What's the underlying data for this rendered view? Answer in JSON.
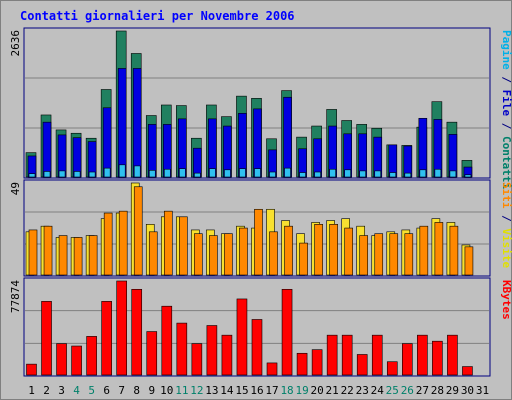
{
  "chart_data": {
    "type": "bar",
    "title": "Contatti giornalieri per Novembre 2006",
    "categories": [
      "1",
      "2",
      "3",
      "4",
      "5",
      "6",
      "7",
      "8",
      "9",
      "10",
      "11",
      "12",
      "13",
      "14",
      "15",
      "16",
      "17",
      "18",
      "19",
      "20",
      "21",
      "22",
      "23",
      "24",
      "25",
      "26",
      "27",
      "28",
      "29",
      "30",
      "31"
    ],
    "weekend_days": [
      "4",
      "5",
      "11",
      "12",
      "18",
      "19",
      "25",
      "26"
    ],
    "panels": [
      {
        "id": "top",
        "max_label": "2636",
        "ylim": [
          0,
          2636
        ],
        "side_label": [
          {
            "text": "Pagine",
            "color": "#00b0e8"
          },
          {
            "text": " / ",
            "color": "#000080"
          },
          {
            "text": "File",
            "color": "#0000c8"
          },
          {
            "text": " / ",
            "color": "#000080"
          },
          {
            "text": "Contatti",
            "color": "#00806a"
          }
        ],
        "series": [
          {
            "name": "Contatti",
            "color": "#208060",
            "values": [
              440,
              1120,
              850,
              790,
              700,
              1580,
              2636,
              2230,
              1110,
              1300,
              1290,
              700,
              1300,
              1090,
              1460,
              1420,
              690,
              1560,
              720,
              920,
              1220,
              1020,
              950,
              880,
              580,
              570,
              900,
              1360,
              990,
              300,
              0
            ]
          },
          {
            "name": "File",
            "color": "#0000e0",
            "values": [
              380,
              990,
              760,
              710,
              640,
              1250,
              1960,
              1960,
              950,
              950,
              1050,
              520,
              1050,
              920,
              1150,
              1230,
              490,
              1440,
              510,
              690,
              920,
              780,
              780,
              720,
              580,
              560,
              1060,
              1040,
              770,
              180,
              0
            ]
          },
          {
            "name": "Pagine",
            "color": "#30c0f0",
            "values": [
              60,
              100,
              110,
              100,
              90,
              160,
              220,
              200,
              120,
              140,
              150,
              70,
              150,
              130,
              150,
              150,
              90,
              160,
              80,
              90,
              140,
              130,
              110,
              110,
              80,
              70,
              130,
              140,
              110,
              40,
              0
            ]
          }
        ]
      },
      {
        "id": "mid",
        "max_label": "49",
        "ylim": [
          0,
          49
        ],
        "side_label": [
          {
            "text": "Siti",
            "color": "#ff8800"
          },
          {
            "text": " / ",
            "color": "#000080"
          },
          {
            "text": "Visite",
            "color": "#e0e000"
          }
        ],
        "series": [
          {
            "name": "Visite",
            "color": "#f8e030",
            "values": [
              23,
              26,
              20,
              20,
              21,
              30,
              33,
              49,
              27,
              31,
              31,
              24,
              24,
              22,
              26,
              25,
              35,
              29,
              22,
              28,
              29,
              30,
              26,
              21,
              23,
              24,
              25,
              30,
              28,
              16,
              0
            ]
          },
          {
            "name": "Siti",
            "color": "#ff8800",
            "values": [
              24,
              26,
              21,
              20,
              21,
              33,
              34,
              47,
              23,
              34,
              31,
              22,
              21,
              22,
              25,
              35,
              23,
              26,
              17,
              27,
              27,
              25,
              21,
              22,
              22,
              22,
              26,
              28,
              26,
              15,
              0
            ]
          }
        ]
      },
      {
        "id": "bottom",
        "max_label": "77874",
        "ylim": [
          0,
          77874
        ],
        "side_label": [
          {
            "text": "KBytes",
            "color": "#ff0000"
          }
        ],
        "series": [
          {
            "name": "KBytes",
            "color": "#ff0000",
            "values": [
              9000,
              61000,
              26000,
              24000,
              32000,
              61000,
              77874,
              71000,
              36000,
              57000,
              43000,
              26000,
              41000,
              33000,
              63000,
              46000,
              10000,
              71000,
              18000,
              21000,
              33000,
              33000,
              17000,
              33000,
              11000,
              26000,
              33000,
              28000,
              33000,
              7000,
              0
            ]
          }
        ]
      }
    ],
    "colors": {
      "background": "#c0c0c0",
      "frame": "#000080",
      "grid": "#808080",
      "title": "#0000ff",
      "weekend_label": "#00806a",
      "day_label": "#000000"
    }
  }
}
